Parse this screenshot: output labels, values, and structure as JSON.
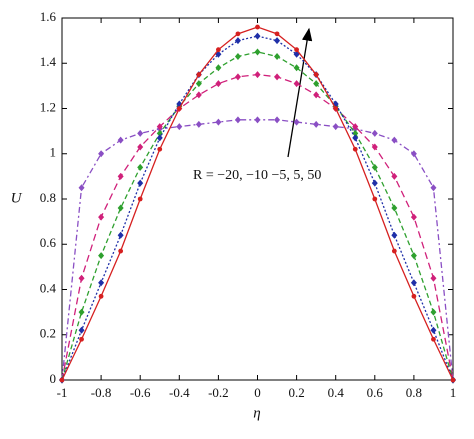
{
  "chart_data": {
    "type": "line",
    "xlabel": "η",
    "ylabel": "U",
    "annotation": "R = −20, −10 −5, 5, 50",
    "x": [
      -1,
      -0.9,
      -0.8,
      -0.7,
      -0.6,
      -0.5,
      -0.4,
      -0.3,
      -0.2,
      -0.1,
      0,
      0.1,
      0.2,
      0.3,
      0.4,
      0.5,
      0.6,
      0.7,
      0.8,
      0.9,
      1
    ],
    "series": [
      {
        "color": "#8a4fc4",
        "dash": "6,3,2,3",
        "marker": "diamond",
        "values": [
          0,
          0.85,
          1.0,
          1.06,
          1.09,
          1.11,
          1.12,
          1.13,
          1.14,
          1.15,
          1.15,
          1.15,
          1.14,
          1.13,
          1.12,
          1.11,
          1.09,
          1.06,
          1.0,
          0.85,
          0
        ]
      },
      {
        "color": "#d0207a",
        "dash": "7,4",
        "marker": "diamond",
        "values": [
          0,
          0.45,
          0.72,
          0.9,
          1.03,
          1.12,
          1.2,
          1.26,
          1.31,
          1.34,
          1.35,
          1.34,
          1.31,
          1.26,
          1.2,
          1.12,
          1.03,
          0.9,
          0.72,
          0.45,
          0
        ]
      },
      {
        "color": "#2ea02e",
        "dash": "5,3",
        "marker": "diamond",
        "values": [
          0,
          0.3,
          0.55,
          0.76,
          0.94,
          1.09,
          1.21,
          1.31,
          1.38,
          1.43,
          1.45,
          1.43,
          1.38,
          1.31,
          1.21,
          1.09,
          0.94,
          0.76,
          0.55,
          0.3,
          0
        ]
      },
      {
        "color": "#1f2fa8",
        "dash": "2,2",
        "marker": "diamond",
        "values": [
          0,
          0.22,
          0.43,
          0.64,
          0.87,
          1.07,
          1.22,
          1.35,
          1.44,
          1.5,
          1.52,
          1.5,
          1.44,
          1.35,
          1.22,
          1.07,
          0.87,
          0.64,
          0.43,
          0.22,
          0
        ]
      },
      {
        "color": "#d62020",
        "dash": "",
        "marker": "circle",
        "values": [
          0,
          0.18,
          0.37,
          0.57,
          0.8,
          1.02,
          1.2,
          1.35,
          1.46,
          1.53,
          1.56,
          1.53,
          1.46,
          1.35,
          1.2,
          1.02,
          0.8,
          0.57,
          0.37,
          0.18,
          0
        ]
      }
    ],
    "xlim": [
      -1,
      1
    ],
    "xticks": [
      -1,
      -0.8,
      -0.6,
      -0.4,
      -0.2,
      0,
      0.2,
      0.4,
      0.6,
      0.8,
      1
    ],
    "ylim": [
      0,
      1.6
    ],
    "yticks": [
      0,
      0.2,
      0.4,
      0.6,
      0.8,
      1,
      1.2,
      1.4,
      1.6
    ],
    "grid": false
  }
}
